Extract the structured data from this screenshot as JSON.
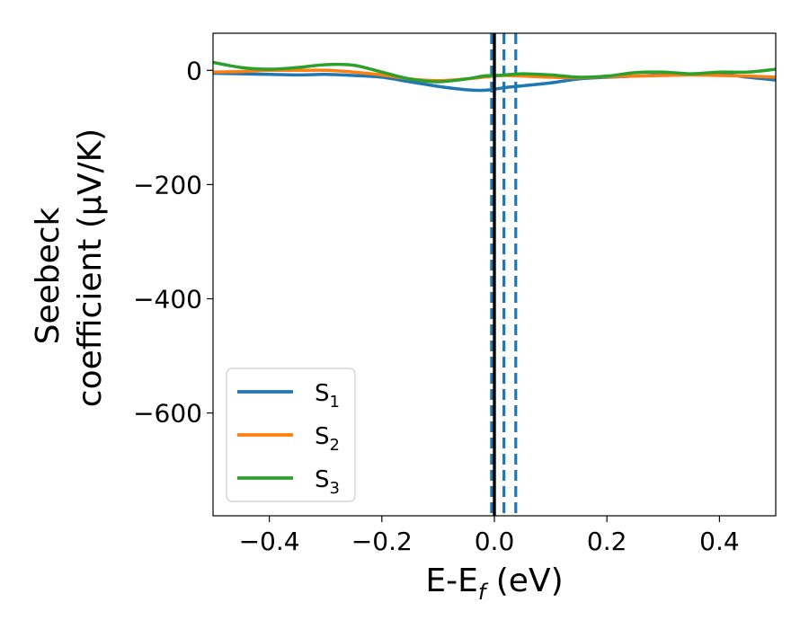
{
  "chart_data": {
    "type": "line",
    "xlabel": "E-E",
    "xlabel_sub": "f",
    "xlabel_unit": " (eV)",
    "ylabel_line1": "Seebeck",
    "ylabel_line2": "coefficient  (μV/K)",
    "xlim": [
      -0.5,
      0.5
    ],
    "ylim": [
      -780,
      65
    ],
    "xticks": [
      -0.4,
      -0.2,
      0.0,
      0.2,
      0.4
    ],
    "xtick_labels": [
      "−0.4",
      "−0.2",
      "0.0",
      "0.2",
      "0.4"
    ],
    "yticks": [
      0,
      -200,
      -400,
      -600
    ],
    "ytick_labels": [
      "0",
      "−200",
      "−400",
      "−600"
    ],
    "grid": false,
    "legend": "lower-left",
    "series": [
      {
        "name": "S",
        "name_sub": "1",
        "color": "#1f77b4",
        "x": [
          -0.5,
          -0.45,
          -0.4,
          -0.35,
          -0.3,
          -0.25,
          -0.2,
          -0.15,
          -0.1,
          -0.05,
          -0.02,
          0.0,
          0.02,
          0.05,
          0.1,
          0.15,
          0.2,
          0.25,
          0.3,
          0.35,
          0.4,
          0.45,
          0.5
        ],
        "y": [
          -5,
          -6,
          -7,
          -8,
          -7,
          -9,
          -12,
          -20,
          -28,
          -34,
          -35,
          -33,
          -30,
          -27,
          -22,
          -15,
          -12,
          -10,
          -8,
          -7,
          -6,
          -12,
          -17
        ]
      },
      {
        "name": "S",
        "name_sub": "2",
        "color": "#ff7f0e",
        "x": [
          -0.5,
          -0.45,
          -0.4,
          -0.35,
          -0.3,
          -0.25,
          -0.2,
          -0.15,
          -0.1,
          -0.05,
          -0.02,
          0.0,
          0.02,
          0.05,
          0.1,
          0.15,
          0.2,
          0.25,
          0.3,
          0.35,
          0.4,
          0.45,
          0.5
        ],
        "y": [
          -3,
          -2,
          0,
          0,
          0,
          -3,
          -8,
          -15,
          -18,
          -15,
          -12,
          -10,
          -9,
          -10,
          -12,
          -13,
          -11,
          -10,
          -9,
          -8,
          -9,
          -10,
          -12
        ]
      },
      {
        "name": "S",
        "name_sub": "3",
        "color": "#2ca02c",
        "x": [
          -0.5,
          -0.45,
          -0.4,
          -0.35,
          -0.3,
          -0.25,
          -0.2,
          -0.15,
          -0.1,
          -0.05,
          -0.02,
          0.0,
          0.02,
          0.05,
          0.1,
          0.15,
          0.2,
          0.25,
          0.3,
          0.35,
          0.4,
          0.45,
          0.5
        ],
        "y": [
          14,
          5,
          2,
          5,
          10,
          9,
          -3,
          -15,
          -20,
          -15,
          -10,
          -9,
          -8,
          -6,
          -8,
          -12,
          -10,
          -4,
          -3,
          -6,
          -3,
          -3,
          2
        ]
      }
    ],
    "vlines": [
      {
        "x": -0.005,
        "color": "#1f77b4",
        "style": "dashed"
      },
      {
        "x": 0.017,
        "color": "#1f77b4",
        "style": "dashed"
      },
      {
        "x": 0.038,
        "color": "#1f77b4",
        "style": "dashed"
      },
      {
        "x": 0.0,
        "color": "#000000",
        "style": "solid"
      }
    ]
  }
}
